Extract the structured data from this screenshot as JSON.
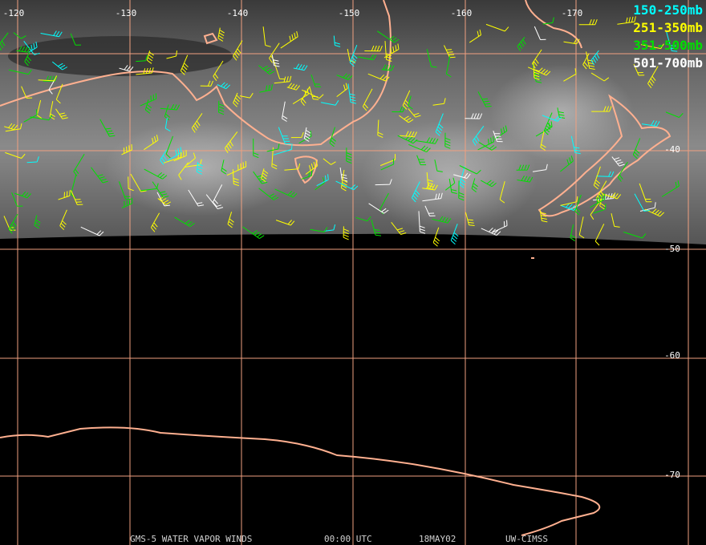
{
  "map": {
    "lon_labels": [
      "-120",
      "-130",
      "-140",
      "-150",
      "-160",
      "-170"
    ],
    "lat_labels": [
      "-40",
      "-50",
      "-60",
      "-70"
    ],
    "grid_color": "#f0a080",
    "coast_color": "#ffb090",
    "legend": [
      {
        "label": "150-250mb",
        "color": "#00ffff"
      },
      {
        "label": "251-350mb",
        "color": "#ffff00"
      },
      {
        "label": "351-500mb",
        "color": "#00e000"
      },
      {
        "label": "501-700mb",
        "color": "#ffffff"
      }
    ],
    "footer": [
      "GMS-5 WATER VAPOR WINDS",
      "00:00 UTC",
      "18MAY02",
      "UW-CIMSS"
    ]
  }
}
